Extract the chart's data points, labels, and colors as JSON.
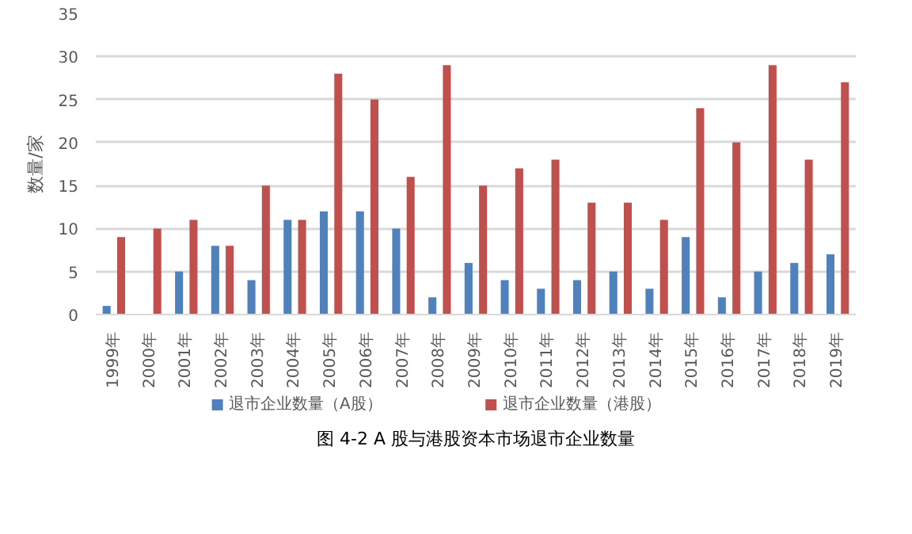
{
  "chart_data": {
    "type": "bar",
    "title": "图 4-2 A 股与港股资本市场退市企业数量",
    "ylabel": "数量/家",
    "categories": [
      "1999年",
      "2000年",
      "2001年",
      "2002年",
      "2003年",
      "2004年",
      "2005年",
      "2006年",
      "2007年",
      "2008年",
      "2009年",
      "2010年",
      "2011年",
      "2012年",
      "2013年",
      "2014年",
      "2015年",
      "2016年",
      "2017年",
      "2018年",
      "2019年"
    ],
    "series": [
      {
        "name": "退市企业数量（A股）",
        "color": "#4f81bd",
        "values": [
          1,
          0,
          5,
          8,
          4,
          11,
          12,
          12,
          10,
          2,
          6,
          4,
          3,
          4,
          5,
          3,
          9,
          2,
          5,
          6,
          7
        ]
      },
      {
        "name": "退市企业数量（港股）",
        "color": "#c0504d",
        "values": [
          9,
          10,
          11,
          8,
          15,
          11,
          28,
          25,
          16,
          29,
          15,
          17,
          18,
          13,
          13,
          11,
          24,
          20,
          29,
          18,
          27
        ]
      }
    ],
    "ylim": [
      0,
      35
    ],
    "yticks": [
      0,
      5,
      10,
      15,
      20,
      25,
      30,
      35
    ],
    "grid": "y",
    "legend": "bottom"
  }
}
